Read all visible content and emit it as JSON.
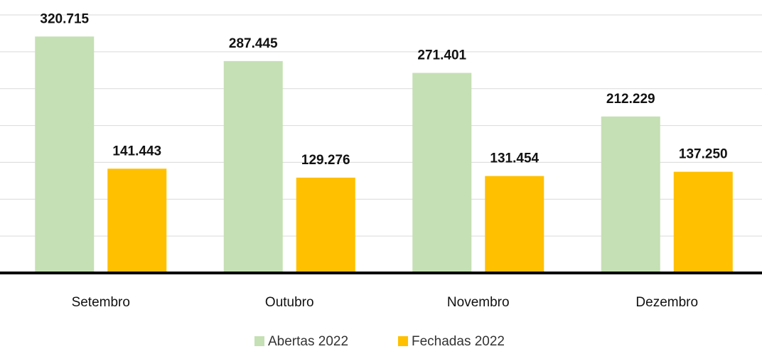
{
  "chart_data": {
    "type": "bar",
    "categories": [
      "Setembro",
      "Outubro",
      "Novembro",
      "Dezembro"
    ],
    "series": [
      {
        "name": "Abertas 2022",
        "color": "#c5e0b4",
        "values": [
          320715,
          287445,
          271401,
          212229
        ],
        "value_labels": [
          "320.715",
          "287.445",
          "271.401",
          "212.229"
        ]
      },
      {
        "name": "Fechadas 2022",
        "color": "#ffc000",
        "values": [
          141443,
          129276,
          131454,
          137250
        ],
        "value_labels": [
          "141.443",
          "129.276",
          "131.454",
          "137.250"
        ]
      }
    ],
    "ylim": [
      0,
      350000
    ],
    "yticks": [
      0,
      50000,
      100000,
      150000,
      200000,
      250000,
      300000,
      350000
    ],
    "grid": true,
    "legend": "bottom"
  }
}
